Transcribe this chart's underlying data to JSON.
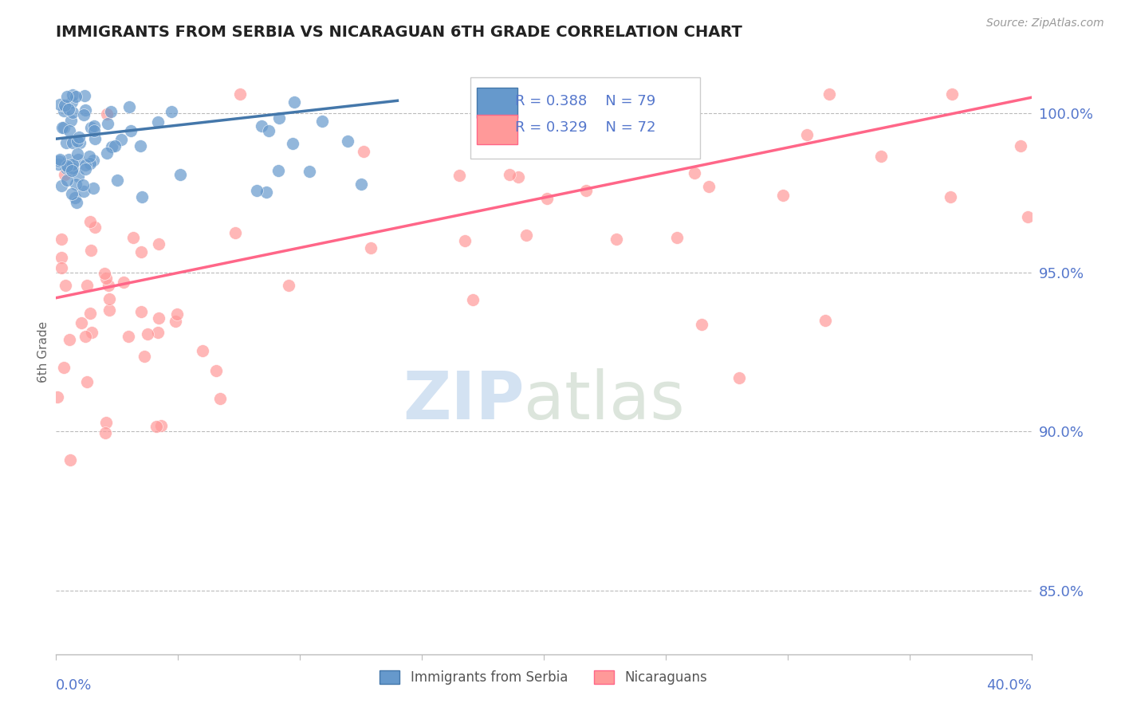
{
  "title": "IMMIGRANTS FROM SERBIA VS NICARAGUAN 6TH GRADE CORRELATION CHART",
  "source_text": "Source: ZipAtlas.com",
  "ylabel": "6th Grade",
  "xlim": [
    0.0,
    40.0
  ],
  "ylim": [
    83.0,
    102.0
  ],
  "legend_r1": "R = 0.388",
  "legend_n1": "N = 79",
  "legend_r2": "R = 0.329",
  "legend_n2": "N = 72",
  "color_blue": "#6699CC",
  "color_pink": "#FF9999",
  "color_line_blue": "#4477AA",
  "color_line_pink": "#FF6688",
  "color_axis_labels": "#5577CC",
  "y_tick_vals": [
    85.0,
    90.0,
    95.0,
    100.0
  ]
}
